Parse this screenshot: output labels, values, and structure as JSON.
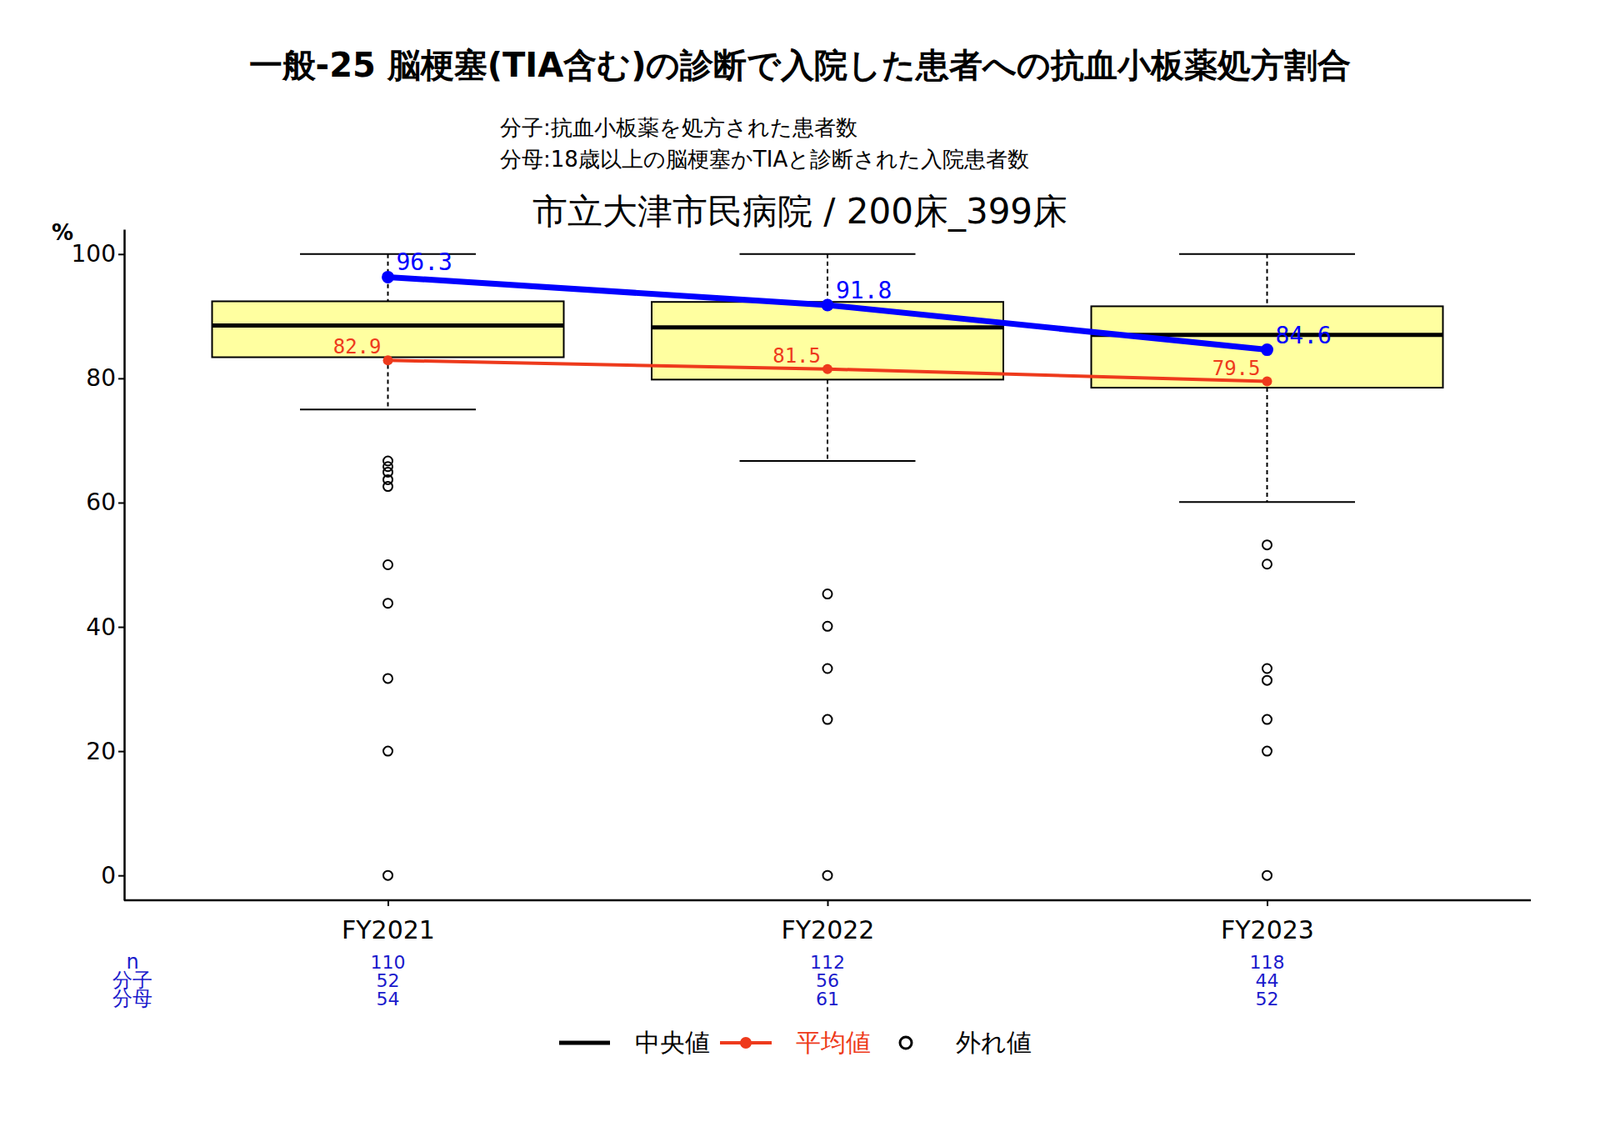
{
  "chart_data": {
    "type": "boxplot",
    "title": "一般-25 脳梗塞(TIA含む)の診断で入院した患者への抗血小板薬処方割合",
    "annotations": [
      "分子:抗血小板薬を処方された患者数",
      "分母:18歳以上の脳梗塞かTIAと診断された入院患者数"
    ],
    "subtitle": "市立大津市民病院 / 200床_399床",
    "ylabel": "%",
    "categories": [
      "FY2021",
      "FY2022",
      "FY2023"
    ],
    "ylim": [
      -4,
      104
    ],
    "yticks": [
      0,
      20,
      40,
      60,
      80,
      100
    ],
    "median_name": "中央値",
    "outlier_name": "外れ値",
    "boxes": [
      {
        "whisker_low": 75,
        "q1": 83.4,
        "median": 88.5,
        "q3": 92.4,
        "whisker_high": 100,
        "outliers": [
          66.7,
          65.8,
          64.9,
          63.7,
          62.6,
          50,
          43.8,
          31.7,
          20,
          0
        ]
      },
      {
        "whisker_low": 66.7,
        "q1": 79.8,
        "median": 88.2,
        "q3": 92.3,
        "whisker_high": 100,
        "outliers": [
          45.3,
          40.1,
          33.3,
          25.1,
          0
        ]
      },
      {
        "whisker_low": 60.1,
        "q1": 78.5,
        "median": 87,
        "q3": 91.6,
        "whisker_high": 100,
        "outliers": [
          53.2,
          50.1,
          33.3,
          31.4,
          25.1,
          20,
          0
        ]
      }
    ],
    "box_color": "#ffffa0",
    "series": [
      {
        "color": "#0000ff",
        "marker": "circle",
        "values": [
          96.3,
          91.8,
          84.6
        ]
      },
      {
        "name": "平均値",
        "color": "#ee3a1c",
        "marker": "circle",
        "values": [
          82.9,
          81.5,
          79.5
        ]
      }
    ],
    "data_labels": true,
    "legend": "bottom",
    "table": {
      "row_labels": [
        "n",
        "分子",
        "分母"
      ],
      "rows": [
        [
          110,
          112,
          118
        ],
        [
          52,
          56,
          44
        ],
        [
          54,
          61,
          52
        ]
      ]
    }
  }
}
